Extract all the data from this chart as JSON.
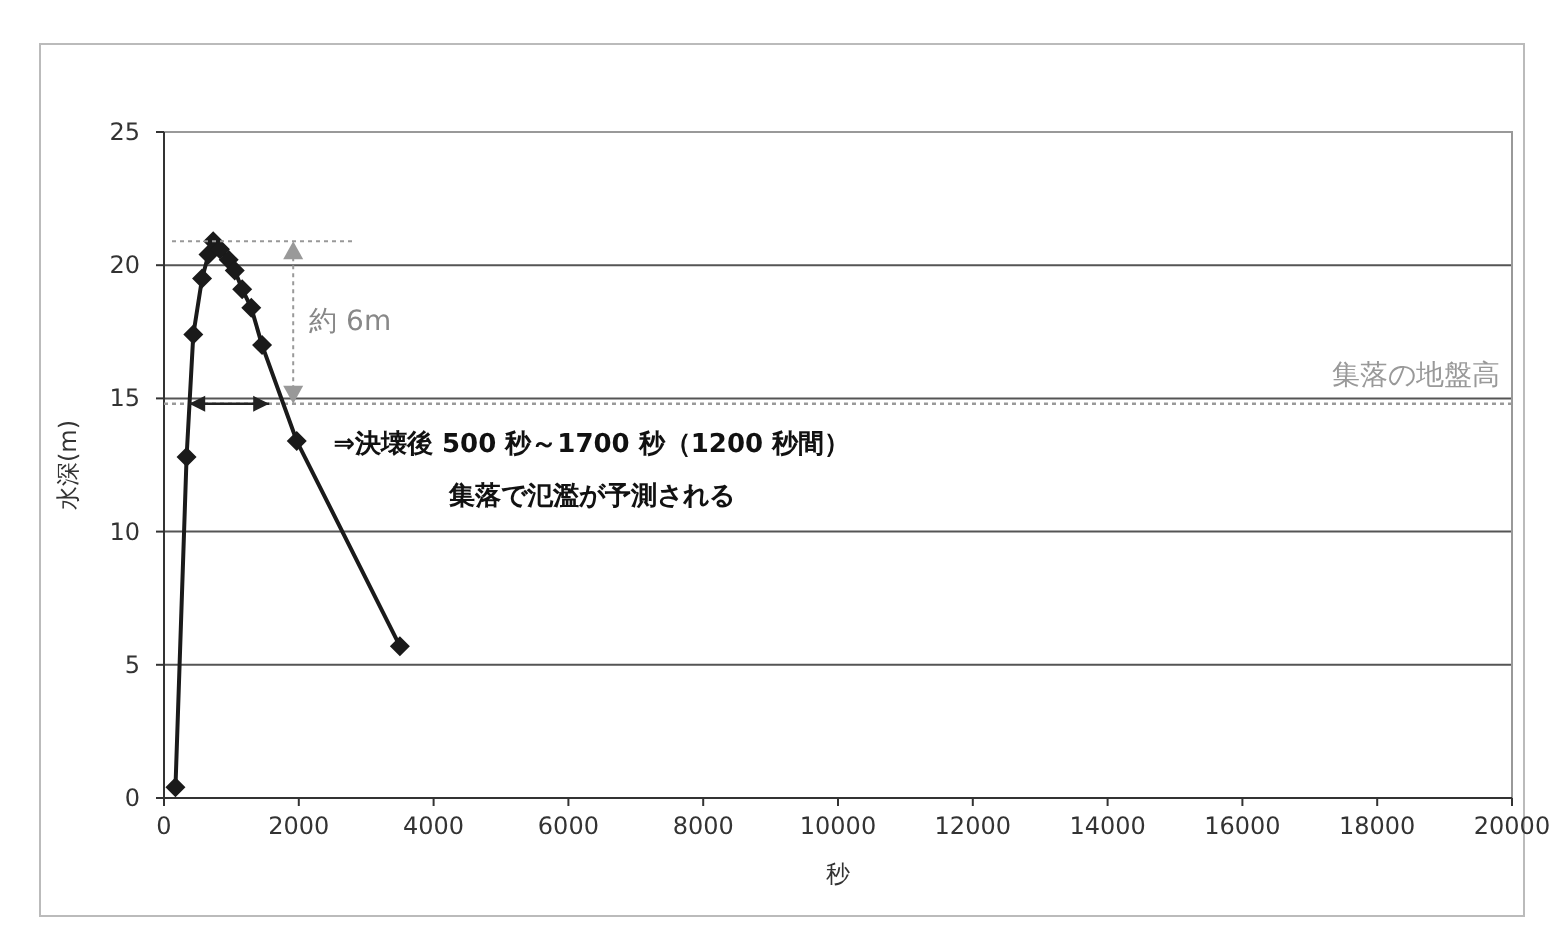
{
  "chart_data": {
    "type": "line",
    "xlabel": "秒",
    "ylabel": "水深(m)",
    "x": [
      170,
      335,
      435,
      565,
      660,
      730,
      830,
      960,
      1050,
      1160,
      1295,
      1455,
      1970,
      3500
    ],
    "series": [
      {
        "color": "#1a1a1a",
        "values": [
          0.4,
          12.8,
          17.4,
          19.5,
          20.4,
          20.9,
          20.6,
          20.2,
          19.8,
          19.1,
          18.4,
          17.0,
          13.4,
          5.7
        ]
      }
    ],
    "marker": "diamond",
    "xlim": [
      0,
      20000
    ],
    "xticks": [
      0,
      2000,
      4000,
      6000,
      8000,
      10000,
      12000,
      14000,
      16000,
      18000,
      20000
    ],
    "ylim": [
      0,
      25
    ],
    "yticks": [
      0,
      5,
      10,
      15,
      20,
      25
    ],
    "grid": "y",
    "ref_lines": [
      {
        "axis": "y",
        "value": 14.8,
        "label": "集落の地盤高",
        "color": "#999999",
        "line_style": "dotted"
      }
    ],
    "annotations": [
      "約 6m",
      "⇒決壊後 500 秒～1700 秒（1200 秒間）",
      "集落で氾濫が予測される"
    ]
  }
}
